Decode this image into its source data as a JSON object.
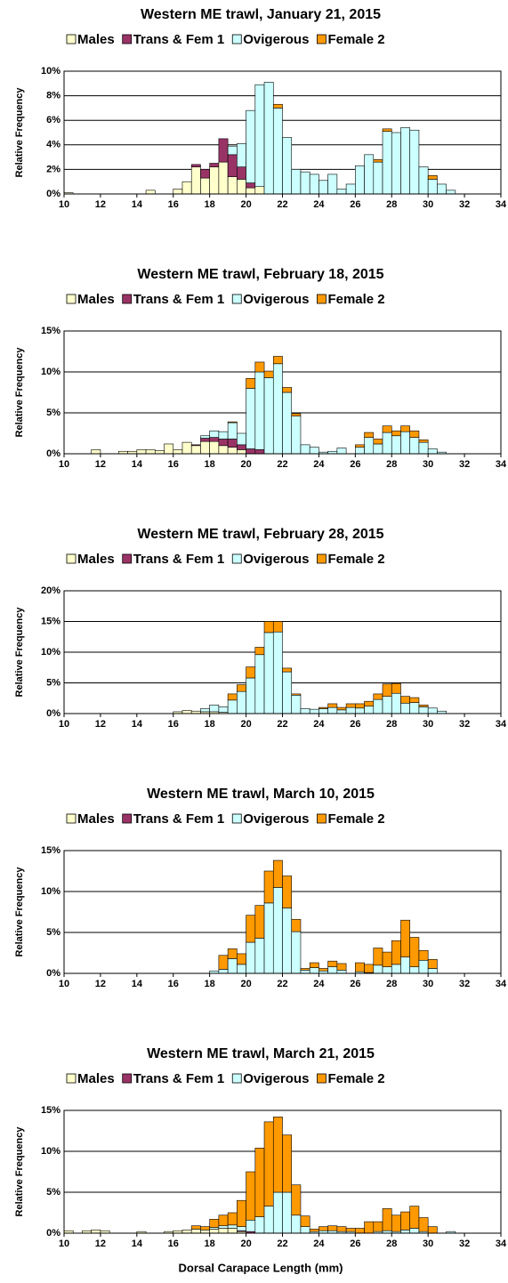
{
  "chart_data": [
    {
      "type": "bar",
      "stacked": true,
      "title": "Western ME trawl, January 21, 2015",
      "ylabel": "Relative Frequency",
      "legend": "top",
      "grid": true,
      "x": [
        10,
        14.5,
        16,
        16.5,
        17,
        17.5,
        18,
        18.5,
        19,
        19.5,
        20,
        20.5,
        21,
        21.5,
        22,
        22.5,
        23,
        23.5,
        24,
        24.5,
        25,
        25.5,
        26,
        26.5,
        27,
        27.5,
        28,
        28.5,
        29,
        29.5,
        30,
        30.5,
        31
      ],
      "series": [
        {
          "name": "Males",
          "color": "#ffffcc",
          "values": [
            0.1,
            0.3,
            0.4,
            1.0,
            2.2,
            1.3,
            2.2,
            2.6,
            1.4,
            1.2,
            0.5,
            0.6,
            0,
            0,
            0,
            0,
            0,
            0,
            0,
            0,
            0,
            0,
            0,
            0,
            0,
            0,
            0,
            0,
            0,
            0,
            0,
            0,
            0
          ]
        },
        {
          "name": "Trans & Fem 1",
          "color": "#993366",
          "values": [
            0,
            0,
            0,
            0,
            0.2,
            0.7,
            0.3,
            1.9,
            1.8,
            1.0,
            0.4,
            0,
            0,
            0,
            0,
            0,
            0,
            0,
            0,
            0,
            0,
            0,
            0,
            0,
            0,
            0,
            0,
            0,
            0,
            0,
            0,
            0,
            0
          ]
        },
        {
          "name": "Ovigerous",
          "color": "#ccffff",
          "values": [
            0,
            0,
            0,
            0,
            0,
            0,
            0,
            0,
            0.7,
            1.9,
            5.9,
            8.3,
            9.1,
            7.0,
            4.6,
            2.0,
            1.8,
            1.6,
            1.1,
            1.6,
            0.4,
            0.8,
            2.3,
            3.2,
            2.6,
            5.1,
            5.0,
            5.4,
            5.2,
            2.2,
            1.2,
            0.8,
            0.3
          ]
        },
        {
          "name": "Female 2",
          "color": "#ff9900",
          "values": [
            0,
            0,
            0,
            0,
            0,
            0,
            0,
            0,
            0,
            0,
            0,
            0,
            0,
            0.3,
            0,
            0,
            0,
            0,
            0,
            0,
            0,
            0,
            0,
            0,
            0.2,
            0.2,
            0,
            0,
            0,
            0,
            0.3,
            0,
            0
          ]
        }
      ],
      "xlim": [
        10,
        34
      ],
      "xticks": [
        10,
        12,
        14,
        16,
        18,
        20,
        22,
        24,
        26,
        28,
        30,
        32,
        34
      ],
      "ylim": [
        0,
        10
      ],
      "yticks": [
        {
          "value": 0,
          "label": "0%"
        },
        {
          "value": 2,
          "label": "2%"
        },
        {
          "value": 4,
          "label": "4%"
        },
        {
          "value": 6,
          "label": "6%"
        },
        {
          "value": 8,
          "label": "8%"
        },
        {
          "value": 10,
          "label": "10%"
        }
      ]
    },
    {
      "type": "bar",
      "stacked": true,
      "title": "Western ME trawl, February 18, 2015",
      "ylabel": "Relative Frequency",
      "legend": "top",
      "grid": true,
      "x": [
        11.5,
        13,
        13.5,
        14,
        14.5,
        15,
        15.5,
        16,
        16.5,
        17,
        17.5,
        18,
        18.5,
        19,
        19.5,
        20,
        20.5,
        21,
        21.5,
        22,
        22.5,
        23,
        23.5,
        24,
        24.5,
        25,
        26,
        26.5,
        27,
        27.5,
        28,
        28.5,
        29,
        29.5,
        30,
        30.5
      ],
      "series": [
        {
          "name": "Males",
          "color": "#ffffcc",
          "values": [
            0.5,
            0.3,
            0.3,
            0.5,
            0.5,
            0.4,
            1.2,
            0.5,
            1.4,
            1.0,
            1.5,
            1.5,
            1.0,
            0.8,
            0.5,
            0,
            0,
            0,
            0,
            0,
            0,
            0,
            0,
            0,
            0,
            0,
            0,
            0,
            0,
            0,
            0,
            0,
            0,
            0,
            0,
            0
          ]
        },
        {
          "name": "Trans & Fem 1",
          "color": "#993366",
          "values": [
            0,
            0,
            0,
            0,
            0,
            0,
            0,
            0,
            0,
            0.1,
            0.4,
            0.5,
            0.8,
            1.0,
            0.6,
            0.6,
            0.5,
            0,
            0,
            0,
            0,
            0,
            0,
            0,
            0,
            0,
            0,
            0,
            0,
            0,
            0,
            0,
            0,
            0,
            0,
            0
          ]
        },
        {
          "name": "Ovigerous",
          "color": "#ccffff",
          "values": [
            0,
            0,
            0,
            0,
            0,
            0,
            0,
            0,
            0,
            0,
            0.3,
            0.8,
            0.9,
            2.0,
            1.4,
            7.4,
            9.5,
            9.3,
            11.0,
            7.5,
            4.6,
            1.1,
            0.8,
            0.2,
            0.3,
            0.7,
            0.8,
            2.0,
            1.2,
            2.6,
            2.2,
            2.7,
            2.0,
            1.4,
            0.6,
            0.2
          ]
        },
        {
          "name": "Female 2",
          "color": "#ff9900",
          "values": [
            0,
            0,
            0,
            0,
            0,
            0,
            0,
            0,
            0,
            0,
            0,
            0,
            0,
            0.1,
            0,
            1.2,
            1.2,
            0.8,
            0.9,
            0.6,
            0.3,
            0,
            0,
            0,
            0,
            0,
            0.3,
            0.6,
            0.6,
            0.8,
            0.6,
            0.7,
            0.8,
            0.3,
            0,
            0
          ]
        }
      ],
      "xlim": [
        10,
        34
      ],
      "xticks": [
        10,
        12,
        14,
        16,
        18,
        20,
        22,
        24,
        26,
        28,
        30,
        32,
        34
      ],
      "ylim": [
        0,
        15
      ],
      "yticks": [
        {
          "value": 0,
          "label": "0%"
        },
        {
          "value": 5,
          "label": "5%"
        },
        {
          "value": 10,
          "label": "10%"
        },
        {
          "value": 15,
          "label": "15%"
        }
      ]
    },
    {
      "type": "bar",
      "stacked": true,
      "title": "Western ME trawl, February 28, 2015",
      "ylabel": "Relative Frequency",
      "legend": "top",
      "grid": true,
      "x": [
        16,
        16.5,
        17,
        17.5,
        18,
        18.5,
        19,
        19.5,
        20,
        20.5,
        21,
        21.5,
        22,
        22.5,
        23,
        23.5,
        24,
        24.5,
        25,
        25.5,
        26,
        26.5,
        27,
        27.5,
        28,
        28.5,
        29,
        29.5,
        30,
        30.5
      ],
      "series": [
        {
          "name": "Males",
          "color": "#ffffcc",
          "values": [
            0.3,
            0.5,
            0.4,
            0.3,
            0.3,
            0.2,
            0,
            0,
            0,
            0,
            0,
            0,
            0,
            0,
            0,
            0,
            0,
            0,
            0,
            0,
            0,
            0,
            0,
            0,
            0,
            0,
            0,
            0,
            0,
            0
          ]
        },
        {
          "name": "Trans & Fem 1",
          "color": "#993366",
          "values": [
            0,
            0,
            0,
            0,
            0,
            0,
            0,
            0,
            0,
            0,
            0,
            0,
            0,
            0,
            0,
            0,
            0,
            0,
            0,
            0,
            0,
            0,
            0,
            0,
            0,
            0,
            0,
            0,
            0,
            0
          ]
        },
        {
          "name": "Ovigerous",
          "color": "#ccffff",
          "values": [
            0,
            0,
            0,
            0.5,
            1.1,
            0.9,
            2.2,
            3.6,
            5.8,
            9.6,
            13.2,
            13.3,
            6.8,
            3.0,
            0.8,
            0.7,
            0.8,
            1.0,
            0.6,
            1.0,
            0.9,
            1.2,
            2.3,
            2.8,
            3.3,
            1.7,
            1.8,
            1.1,
            0.9,
            0.4
          ]
        },
        {
          "name": "Female 2",
          "color": "#ff9900",
          "values": [
            0,
            0,
            0,
            0,
            0,
            0,
            1.0,
            1.1,
            1.8,
            1.2,
            1.8,
            1.7,
            0.6,
            0.2,
            0,
            0,
            0.2,
            0.6,
            0.4,
            0.6,
            0.7,
            0.8,
            0.9,
            2.0,
            1.6,
            1.1,
            0.8,
            0.3,
            0,
            0
          ]
        }
      ],
      "xlim": [
        10,
        34
      ],
      "xticks": [
        10,
        12,
        14,
        16,
        18,
        20,
        22,
        24,
        26,
        28,
        30,
        32,
        34
      ],
      "ylim": [
        0,
        20
      ],
      "yticks": [
        {
          "value": 0,
          "label": "0%"
        },
        {
          "value": 5,
          "label": "5%"
        },
        {
          "value": 10,
          "label": "10%"
        },
        {
          "value": 15,
          "label": "15%"
        },
        {
          "value": 20,
          "label": "20%"
        }
      ]
    },
    {
      "type": "bar",
      "stacked": true,
      "title": "Western ME trawl, March 10, 2015",
      "ylabel": "Relative Frequency",
      "legend": "top",
      "grid": true,
      "x": [
        18,
        18.5,
        19,
        19.5,
        20,
        20.5,
        21,
        21.5,
        22,
        22.5,
        23,
        23.5,
        24,
        24.5,
        25,
        26,
        26.5,
        27,
        27.5,
        28,
        28.5,
        29,
        29.5,
        30
      ],
      "series": [
        {
          "name": "Males",
          "color": "#ffffcc",
          "values": [
            0,
            0,
            0,
            0,
            0,
            0,
            0,
            0,
            0,
            0,
            0,
            0,
            0,
            0,
            0,
            0,
            0,
            0,
            0,
            0,
            0,
            0,
            0,
            0
          ]
        },
        {
          "name": "Trans & Fem 1",
          "color": "#993366",
          "values": [
            0,
            0,
            0,
            0,
            0,
            0,
            0,
            0,
            0,
            0,
            0,
            0,
            0,
            0,
            0,
            0,
            0,
            0,
            0,
            0,
            0,
            0,
            0,
            0
          ]
        },
        {
          "name": "Ovigerous",
          "color": "#ccffff",
          "values": [
            0.3,
            0.5,
            1.8,
            1.1,
            3.8,
            4.3,
            8.6,
            10.5,
            8.0,
            5.1,
            0.4,
            0.7,
            0.3,
            0.8,
            0.4,
            0.2,
            0.1,
            1.0,
            0.8,
            1.1,
            2.0,
            0.8,
            1.6,
            0.6
          ]
        },
        {
          "name": "Female 2",
          "color": "#ff9900",
          "values": [
            0,
            1.7,
            1.2,
            1.3,
            3.3,
            4.0,
            3.9,
            3.3,
            3.9,
            1.5,
            0.2,
            0.6,
            0.3,
            0.7,
            0.8,
            1.1,
            1.0,
            2.1,
            1.8,
            2.9,
            4.5,
            3.6,
            1.2,
            1.1
          ]
        }
      ],
      "xlim": [
        10,
        34
      ],
      "xticks": [
        10,
        12,
        14,
        16,
        18,
        20,
        22,
        24,
        26,
        28,
        30,
        32,
        34
      ],
      "ylim": [
        0,
        15
      ],
      "yticks": [
        {
          "value": 0,
          "label": "0%"
        },
        {
          "value": 5,
          "label": "5%"
        },
        {
          "value": 10,
          "label": "10%"
        },
        {
          "value": 15,
          "label": "15%"
        }
      ]
    },
    {
      "type": "bar",
      "stacked": true,
      "title": "Western ME trawl, March 21, 2015",
      "ylabel": "Relative Frequency",
      "xlabel": "Dorsal Carapace Length (mm)",
      "legend": "top",
      "grid": true,
      "x": [
        10,
        11,
        11.5,
        12,
        14,
        15.5,
        16,
        16.5,
        17,
        17.5,
        18,
        18.5,
        19,
        19.5,
        20,
        20.5,
        21,
        21.5,
        22,
        22.5,
        23,
        23.5,
        24,
        24.5,
        25,
        25.5,
        26,
        26.5,
        27,
        27.5,
        28,
        28.5,
        29,
        29.5,
        30,
        31
      ],
      "series": [
        {
          "name": "Males",
          "color": "#ffffcc",
          "values": [
            0.3,
            0.3,
            0.4,
            0.3,
            0.2,
            0.2,
            0.3,
            0.4,
            0.5,
            0.4,
            0.5,
            0.6,
            0.6,
            0.2,
            0,
            0,
            0,
            0,
            0,
            0,
            0,
            0,
            0,
            0,
            0,
            0,
            0,
            0,
            0,
            0,
            0,
            0,
            0,
            0,
            0,
            0
          ]
        },
        {
          "name": "Trans & Fem 1",
          "color": "#993366",
          "values": [
            0,
            0,
            0,
            0,
            0,
            0,
            0,
            0,
            0,
            0,
            0,
            0,
            0,
            0.1,
            0.2,
            0,
            0,
            0,
            0,
            0,
            0,
            0,
            0,
            0,
            0,
            0,
            0,
            0,
            0,
            0,
            0,
            0,
            0,
            0,
            0,
            0
          ]
        },
        {
          "name": "Ovigerous",
          "color": "#ccffff",
          "values": [
            0,
            0,
            0,
            0,
            0,
            0,
            0,
            0,
            0,
            0,
            0.2,
            0.3,
            0.4,
            0.5,
            1.4,
            2.0,
            3.3,
            5.0,
            5.0,
            2.2,
            0.8,
            0.2,
            0.3,
            0.3,
            0.2,
            0.2,
            0,
            0,
            0.2,
            0.3,
            0.2,
            0.4,
            0.6,
            0.2,
            0,
            0.2
          ]
        },
        {
          "name": "Female 2",
          "color": "#ff9900",
          "values": [
            0,
            0,
            0,
            0,
            0,
            0,
            0,
            0,
            0.4,
            0.4,
            1.0,
            1.3,
            1.5,
            3.2,
            5.9,
            8.4,
            10.3,
            9.2,
            7.0,
            3.7,
            1.3,
            0.3,
            0.5,
            0.6,
            0.6,
            0.4,
            0.6,
            1.4,
            1.2,
            2.7,
            2.0,
            2.2,
            2.7,
            1.7,
            0.8,
            0
          ]
        }
      ],
      "xlim": [
        10,
        34
      ],
      "xticks": [
        10,
        12,
        14,
        16,
        18,
        20,
        22,
        24,
        26,
        28,
        30,
        32,
        34
      ],
      "ylim": [
        0,
        15
      ],
      "yticks": [
        {
          "value": 0,
          "label": "0%"
        },
        {
          "value": 5,
          "label": "5%"
        },
        {
          "value": 10,
          "label": "10%"
        },
        {
          "value": 15,
          "label": "15%"
        }
      ]
    }
  ]
}
